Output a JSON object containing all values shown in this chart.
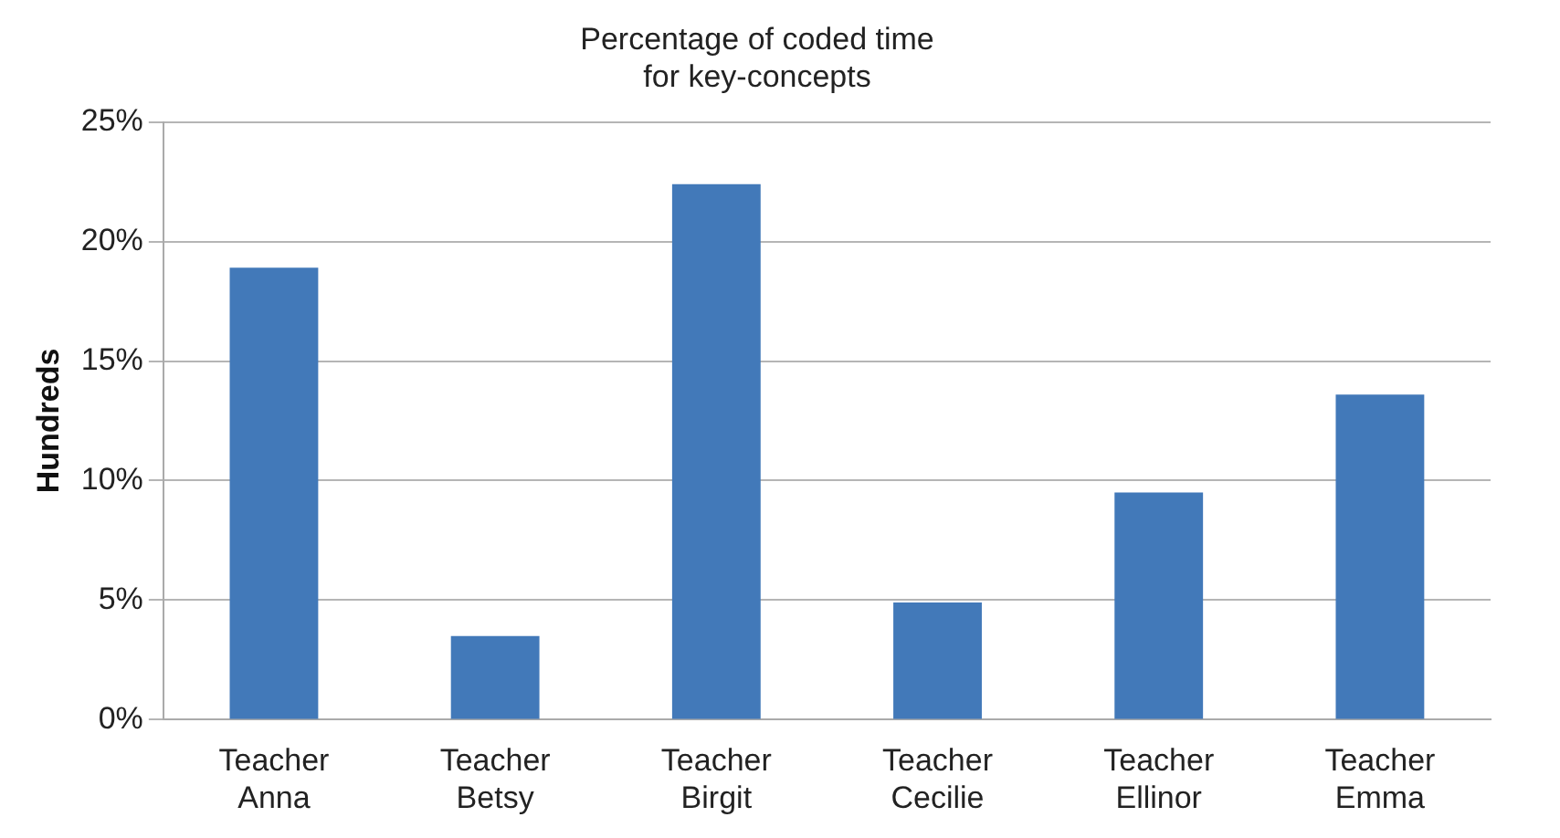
{
  "chart_data": {
    "type": "bar",
    "title": "Percentage of coded time\nfor key-concepts",
    "ylabel": "Hundreds",
    "categories": [
      "Teacher Anna",
      "Teacher Betsy",
      "Teacher Birgit",
      "Teacher Cecilie",
      "Teacher Ellinor",
      "Teacher Emma"
    ],
    "values": [
      18.9,
      3.5,
      22.4,
      4.9,
      9.5,
      13.6
    ],
    "color": "#4279b9",
    "ylim": [
      0,
      25
    ],
    "yticks": [
      {
        "value": 0,
        "label": "0%"
      },
      {
        "value": 5,
        "label": "5%"
      },
      {
        "value": 10,
        "label": "10%"
      },
      {
        "value": 15,
        "label": "15%"
      },
      {
        "value": 20,
        "label": "20%"
      },
      {
        "value": 25,
        "label": "25%"
      }
    ],
    "grid": "y",
    "legend": false
  }
}
